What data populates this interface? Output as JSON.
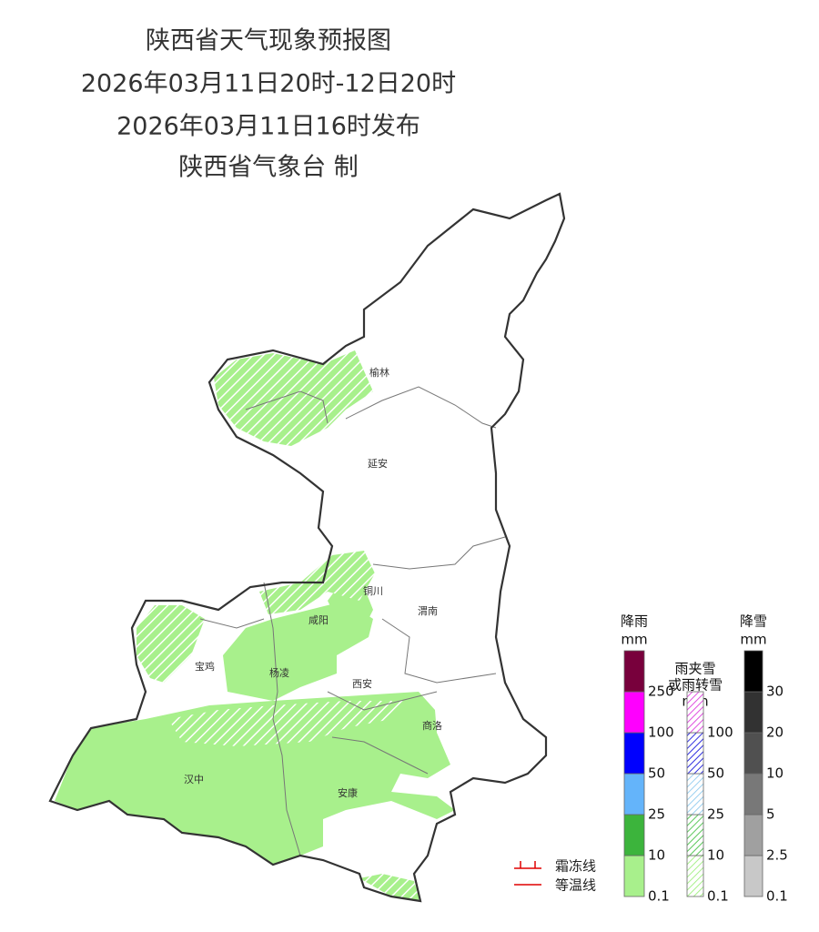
{
  "header": {
    "title": "陕西省天气现象预报图",
    "period": "2026年03月11日20时-12日20时",
    "issued": "2026年03月11日16时发布",
    "agency": "陕西省气象台 制"
  },
  "cities": [
    "榆林",
    "延安",
    "铜川",
    "渭南",
    "咸阳",
    "宝鸡",
    "杨凌",
    "西安",
    "商洛",
    "汉中",
    "安康"
  ],
  "legends": [
    {
      "title": [
        "降雨"
      ],
      "unit": "mm",
      "ticks": [
        0.1,
        10,
        25,
        50,
        100,
        250
      ],
      "colors": [
        "#a8f08c",
        "#3cb43c",
        "#64b4fa",
        "#0000fe",
        "#fe00fe",
        "#78003c"
      ],
      "hatched": false
    },
    {
      "title": [
        "雨夹雪",
        "或雨转雪"
      ],
      "unit": "mm",
      "ticks": [
        0.1,
        10,
        25,
        50,
        100
      ],
      "colors": [
        "#a8f08c",
        "#5cc85c",
        "#9bd0f0",
        "#3030e0",
        "#e050e0"
      ],
      "hatched": true
    },
    {
      "title": [
        "降雪"
      ],
      "unit": "mm",
      "ticks": [
        0.1,
        2.5,
        5,
        10,
        20,
        30
      ],
      "colors": [
        "#c8c8c8",
        "#a0a0a0",
        "#787878",
        "#505050",
        "#323232",
        "#000000"
      ],
      "hatched": false
    }
  ],
  "lines": [
    "霜冻线",
    "等温线"
  ]
}
